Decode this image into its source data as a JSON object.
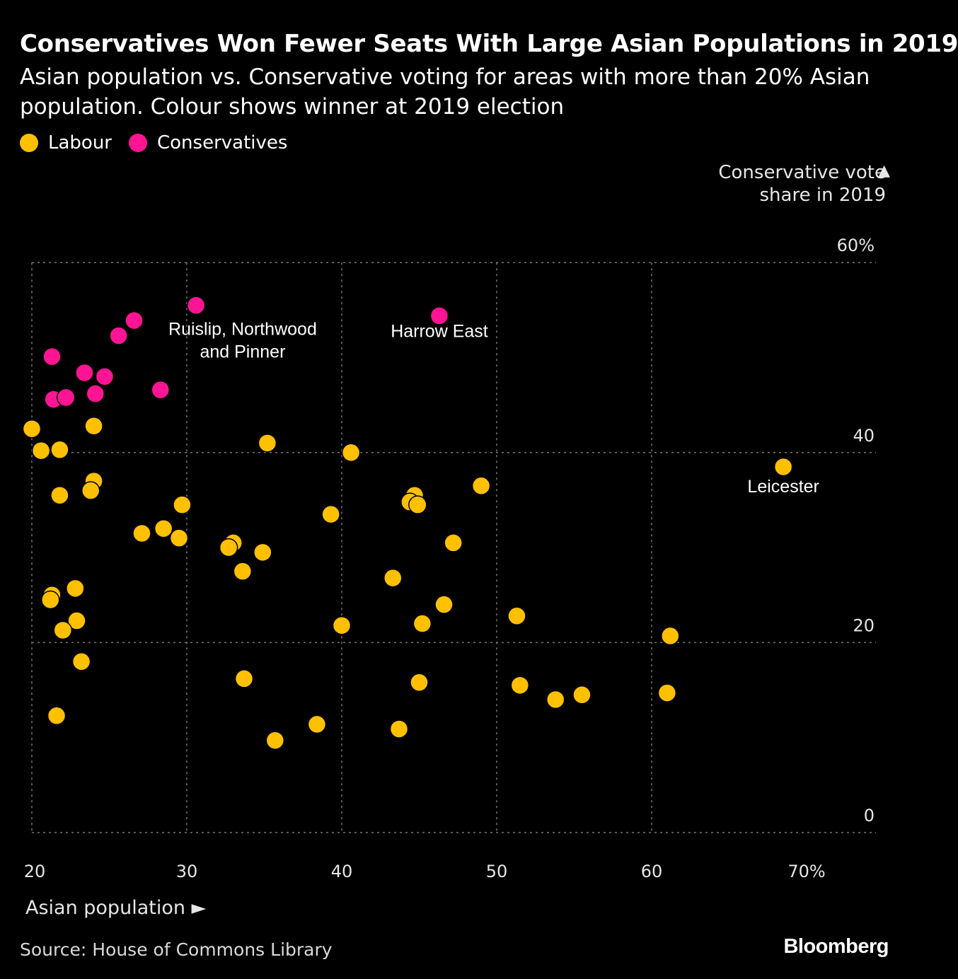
{
  "title": "Conservatives Won Fewer Seats With Large Asian Populations in 2019",
  "subtitle": "Asian population vs. Conservative voting for areas with more than 20% Asian population. Colour shows winner at 2019 election",
  "legend": [
    {
      "label": "Labour",
      "color": "#FFC000"
    },
    {
      "label": "Conservatives",
      "color": "#FF1493"
    }
  ],
  "source": "Source: House of Commons Library",
  "brand": "Bloomberg",
  "chart_data": {
    "type": "scatter",
    "xlabel": "Asian population ►",
    "ylabel": "Conservative vote share in 2019",
    "xlim": [
      20,
      72
    ],
    "ylim": [
      0,
      60
    ],
    "x_ticks": [
      "20",
      "30",
      "40",
      "50",
      "60",
      "70%"
    ],
    "y_ticks": [
      "0",
      "20",
      "40",
      "60%"
    ],
    "grid": true,
    "legend_position": "top-left",
    "annotations": [
      {
        "lines": [
          "Ruislip, Northwood",
          "and Pinner"
        ],
        "x": 30.5,
        "y": 55.5
      },
      {
        "lines": [
          "Harrow East"
        ],
        "x": 46.3,
        "y": 54.4
      },
      {
        "lines": [
          "Leicester"
        ],
        "x": 68.5,
        "y": 38.5
      }
    ],
    "series": [
      {
        "name": "Labour",
        "color": "#FFC000",
        "points": [
          [
            20.0,
            42.5
          ],
          [
            20.6,
            40.2
          ],
          [
            21.8,
            40.3
          ],
          [
            24.0,
            42.8
          ],
          [
            24.0,
            37.0
          ],
          [
            23.8,
            36.0
          ],
          [
            21.8,
            35.5
          ],
          [
            35.2,
            41.0
          ],
          [
            40.6,
            40.0
          ],
          [
            29.7,
            34.5
          ],
          [
            28.5,
            32.0
          ],
          [
            27.1,
            31.5
          ],
          [
            29.5,
            31.0
          ],
          [
            33.0,
            30.5
          ],
          [
            32.7,
            30.0
          ],
          [
            34.9,
            29.5
          ],
          [
            33.6,
            27.5
          ],
          [
            39.3,
            33.5
          ],
          [
            44.7,
            35.5
          ],
          [
            44.4,
            34.8
          ],
          [
            44.9,
            34.5
          ],
          [
            49.0,
            36.5
          ],
          [
            47.2,
            30.5
          ],
          [
            43.3,
            26.8
          ],
          [
            46.6,
            24.0
          ],
          [
            45.2,
            22.0
          ],
          [
            40.0,
            21.8
          ],
          [
            51.3,
            22.8
          ],
          [
            61.2,
            20.7
          ],
          [
            68.5,
            38.5
          ],
          [
            21.3,
            25.0
          ],
          [
            21.2,
            24.5
          ],
          [
            22.8,
            25.7
          ],
          [
            22.9,
            22.3
          ],
          [
            22.0,
            21.3
          ],
          [
            23.2,
            18.0
          ],
          [
            21.6,
            12.3
          ],
          [
            33.7,
            16.2
          ],
          [
            35.7,
            9.7
          ],
          [
            38.4,
            11.4
          ],
          [
            43.7,
            10.9
          ],
          [
            45.0,
            15.8
          ],
          [
            51.5,
            15.5
          ],
          [
            53.8,
            14.0
          ],
          [
            55.5,
            14.5
          ],
          [
            61.0,
            14.7
          ]
        ]
      },
      {
        "name": "Conservatives",
        "color": "#FF1493",
        "points": [
          [
            21.3,
            50.1
          ],
          [
            21.4,
            45.6
          ],
          [
            22.2,
            45.8
          ],
          [
            23.4,
            48.4
          ],
          [
            24.7,
            48.0
          ],
          [
            24.1,
            46.2
          ],
          [
            25.6,
            52.3
          ],
          [
            26.6,
            53.9
          ],
          [
            28.3,
            46.6
          ],
          [
            30.6,
            55.5
          ],
          [
            46.3,
            54.4
          ]
        ]
      }
    ]
  }
}
